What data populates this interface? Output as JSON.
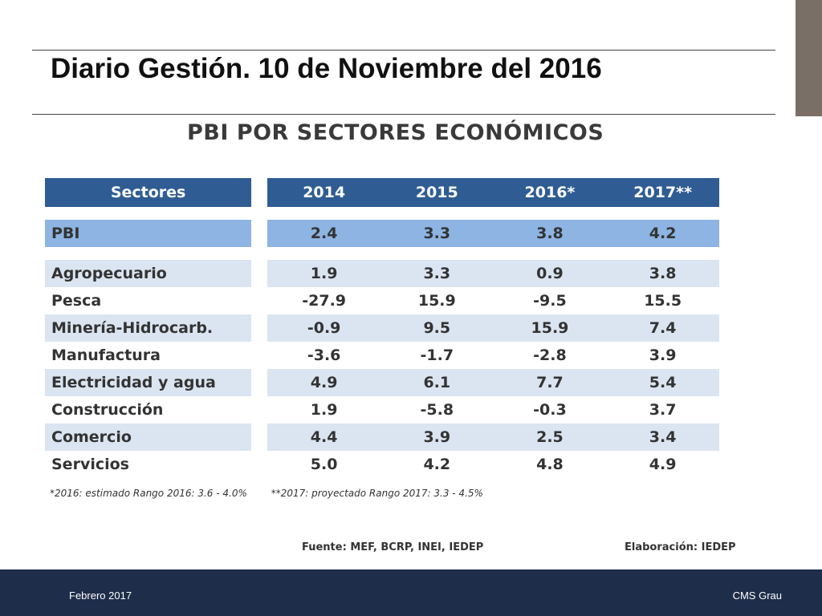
{
  "slide": {
    "title": "Diario Gestión. 10 de Noviembre del 2016"
  },
  "table": {
    "title": "PBI POR SECTORES ECONÓMICOS",
    "headers": [
      "Sectores",
      "2014",
      "2015",
      "2016*",
      "2017**"
    ],
    "pbi": {
      "name": "PBI",
      "values": [
        "2.4",
        "3.3",
        "3.8",
        "4.2"
      ]
    },
    "rows": [
      {
        "name": "Agropecuario",
        "values": [
          "1.9",
          "3.3",
          "0.9",
          "3.8"
        ]
      },
      {
        "name": "Pesca",
        "values": [
          "-27.9",
          "15.9",
          "-9.5",
          "15.5"
        ]
      },
      {
        "name": "Minería-Hidrocarb.",
        "values": [
          "-0.9",
          "9.5",
          "15.9",
          "7.4"
        ]
      },
      {
        "name": "Manufactura",
        "values": [
          "-3.6",
          "-1.7",
          "-2.8",
          "3.9"
        ]
      },
      {
        "name": "Electricidad y agua",
        "values": [
          "4.9",
          "6.1",
          "7.7",
          "5.4"
        ]
      },
      {
        "name": "Construcción",
        "values": [
          "1.9",
          "-5.8",
          "-0.3",
          "3.7"
        ]
      },
      {
        "name": "Comercio",
        "values": [
          "4.4",
          "3.9",
          "2.5",
          "3.4"
        ]
      },
      {
        "name": "Servicios",
        "values": [
          "5.0",
          "4.2",
          "4.8",
          "4.9"
        ]
      }
    ],
    "note_2016": "*2016: estimado  Rango 2016: 3.6 - 4.0%",
    "note_2017": "**2017: proyectado  Rango 2017: 3.3 - 4.5%",
    "source": "Fuente: MEF, BCRP, INEI, IEDEP",
    "credit": "Elaboración: IEDEP"
  },
  "footer": {
    "left": "Febrero 2017",
    "right": "CMS Grau"
  },
  "colors": {
    "header_bg": "#2f5d93",
    "pbi_row_bg": "#8db4e2",
    "shaded_row_bg": "#dbe5f1",
    "footer_bg": "#1d2d4a",
    "side_bar": "#7a6f67"
  }
}
